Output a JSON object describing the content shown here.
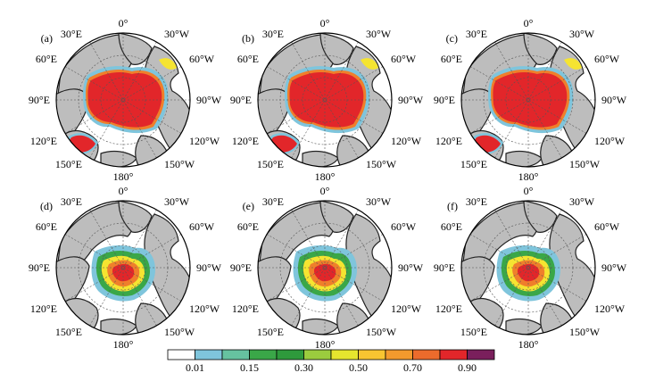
{
  "figure": {
    "panels": [
      {
        "id": "a",
        "label": "(a)",
        "kind": "concentration"
      },
      {
        "id": "b",
        "label": "(b)",
        "kind": "concentration"
      },
      {
        "id": "c",
        "label": "(c)",
        "kind": "concentration"
      },
      {
        "id": "d",
        "label": "(d)",
        "kind": "thin"
      },
      {
        "id": "e",
        "label": "(e)",
        "kind": "thin"
      },
      {
        "id": "f",
        "label": "(f)",
        "kind": "thin"
      }
    ],
    "meridian_labels": {
      "top": "0°",
      "top_left": "30°E",
      "top_right": "30°W",
      "upper_left": "60°E",
      "upper_right": "60°W",
      "left": "90°E",
      "right": "90°W",
      "lower_left": "120°E",
      "lower_right": "120°W",
      "bottom_left": "150°E",
      "bottom_right": "150°W",
      "bottom": "180°"
    },
    "colorbar": {
      "colors": [
        "#ffffff",
        "#7fc5dc",
        "#66c2a0",
        "#3aa748",
        "#2e9a3c",
        "#9bcc3e",
        "#e6e62e",
        "#f8c531",
        "#f39a2d",
        "#ec6b2c",
        "#e2262a",
        "#7a1f5c"
      ],
      "tick_labels": [
        "0.01",
        "0.15",
        "0.30",
        "0.50",
        "0.70",
        "0.90"
      ],
      "tick_after_box": [
        1,
        3,
        5,
        7,
        9,
        11
      ]
    },
    "colors": {
      "land": "#bdbdbd",
      "coast": "#222222",
      "ice_red": "#e2262a",
      "ice_orange": "#ef7f2b",
      "ice_yellow": "#f5e431",
      "ice_green": "#3aa748",
      "ice_cyan": "#7fc5dc",
      "ice_lime": "#9bcc3e"
    }
  }
}
